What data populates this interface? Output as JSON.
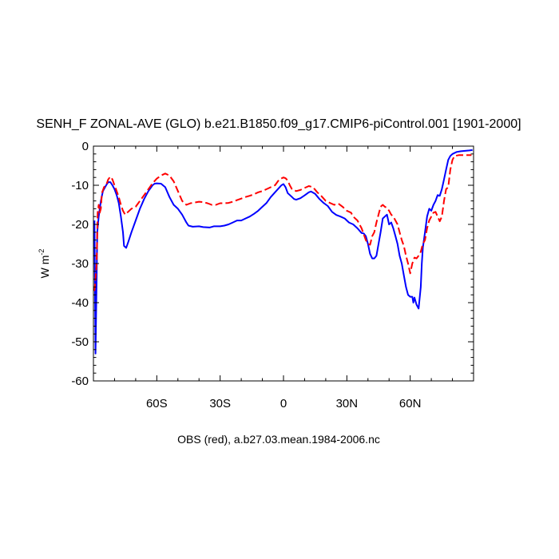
{
  "chart_data": {
    "type": "line",
    "title": "SENH_F ZONAL-AVE (GLO) b.e21.B1850.f09_g17.CMIP6-piControl.001 [1901-2000]",
    "ylabel": "W m",
    "ylabel_sup": "-2",
    "xlabel": "OBS (red), a.b27.03.mean.1984-2006.nc",
    "xlim": [
      -90,
      90
    ],
    "ylim": [
      -60,
      0
    ],
    "x_ticks": [
      {
        "value": -60,
        "label": "60S"
      },
      {
        "value": -30,
        "label": "30S"
      },
      {
        "value": 0,
        "label": "0"
      },
      {
        "value": 30,
        "label": "30N"
      },
      {
        "value": 60,
        "label": "60N"
      }
    ],
    "y_ticks": [
      {
        "value": 0,
        "label": "0"
      },
      {
        "value": -10,
        "label": "-10"
      },
      {
        "value": -20,
        "label": "-20"
      },
      {
        "value": -30,
        "label": "-30"
      },
      {
        "value": -40,
        "label": "-40"
      },
      {
        "value": -50,
        "label": "-50"
      },
      {
        "value": -60,
        "label": "-60"
      }
    ],
    "grid": false,
    "series": [
      {
        "color": "#0000ff",
        "dash": "solid",
        "points": [
          [
            -89.5,
            -19
          ],
          [
            -89,
            -53
          ],
          [
            -88.6,
            -38
          ],
          [
            -88.2,
            -22
          ],
          [
            -87.5,
            -18
          ],
          [
            -86.5,
            -14
          ],
          [
            -85.5,
            -11.5
          ],
          [
            -84,
            -10
          ],
          [
            -83,
            -9.2
          ],
          [
            -82,
            -9.2
          ],
          [
            -81,
            -10
          ],
          [
            -80,
            -11
          ],
          [
            -79,
            -12.5
          ],
          [
            -78,
            -14.5
          ],
          [
            -77,
            -18
          ],
          [
            -76,
            -22
          ],
          [
            -75.5,
            -25.5
          ],
          [
            -74.5,
            -26
          ],
          [
            -73.5,
            -24.5
          ],
          [
            -72,
            -22
          ],
          [
            -70,
            -19
          ],
          [
            -68,
            -16
          ],
          [
            -66,
            -13.5
          ],
          [
            -64,
            -11.5
          ],
          [
            -62,
            -10
          ],
          [
            -61,
            -9.6
          ],
          [
            -60,
            -9.5
          ],
          [
            -58,
            -9.6
          ],
          [
            -56,
            -10.5
          ],
          [
            -54,
            -13
          ],
          [
            -52,
            -15
          ],
          [
            -50,
            -16
          ],
          [
            -48,
            -17.5
          ],
          [
            -46,
            -19.5
          ],
          [
            -45,
            -20.3
          ],
          [
            -43,
            -20.6
          ],
          [
            -40,
            -20.5
          ],
          [
            -38,
            -20.7
          ],
          [
            -35,
            -20.8
          ],
          [
            -33,
            -20.5
          ],
          [
            -30,
            -20.5
          ],
          [
            -28,
            -20.3
          ],
          [
            -26,
            -20
          ],
          [
            -24,
            -19.5
          ],
          [
            -22,
            -19
          ],
          [
            -20,
            -19
          ],
          [
            -18,
            -18.5
          ],
          [
            -16,
            -18
          ],
          [
            -14,
            -17.3
          ],
          [
            -12,
            -16.5
          ],
          [
            -10,
            -15.5
          ],
          [
            -8,
            -14.5
          ],
          [
            -6,
            -13
          ],
          [
            -4,
            -11.8
          ],
          [
            -2,
            -10.6
          ],
          [
            -1,
            -10
          ],
          [
            0,
            -9.7
          ],
          [
            1,
            -10.5
          ],
          [
            2,
            -12
          ],
          [
            4,
            -13
          ],
          [
            5,
            -13.5
          ],
          [
            6,
            -13.7
          ],
          [
            8,
            -13.3
          ],
          [
            10,
            -12.6
          ],
          [
            12,
            -11.8
          ],
          [
            13,
            -11.6
          ],
          [
            15,
            -12.2
          ],
          [
            17,
            -13.5
          ],
          [
            19,
            -14.5
          ],
          [
            21,
            -15.3
          ],
          [
            23,
            -16.8
          ],
          [
            25,
            -17.6
          ],
          [
            27,
            -18
          ],
          [
            29,
            -18.5
          ],
          [
            31,
            -19.5
          ],
          [
            33,
            -20
          ],
          [
            35,
            -21
          ],
          [
            37,
            -22.2
          ],
          [
            38,
            -22.3
          ],
          [
            39,
            -23
          ],
          [
            40,
            -25
          ],
          [
            41,
            -27.5
          ],
          [
            42,
            -28.7
          ],
          [
            43,
            -28.7
          ],
          [
            44,
            -28
          ],
          [
            45,
            -25
          ],
          [
            46,
            -22
          ],
          [
            47,
            -18.5
          ],
          [
            48,
            -18
          ],
          [
            49,
            -17.5
          ],
          [
            50,
            -20
          ],
          [
            51,
            -19.5
          ],
          [
            52,
            -21
          ],
          [
            53,
            -23
          ],
          [
            54,
            -25
          ],
          [
            55,
            -28
          ],
          [
            56,
            -30
          ],
          [
            57,
            -33
          ],
          [
            58,
            -36
          ],
          [
            59,
            -38
          ],
          [
            60,
            -38.5
          ],
          [
            61,
            -38.5
          ],
          [
            61.5,
            -40
          ],
          [
            62,
            -38.7
          ],
          [
            63,
            -40.5
          ],
          [
            64,
            -41.5
          ],
          [
            65,
            -36
          ],
          [
            65.5,
            -30
          ],
          [
            66,
            -26
          ],
          [
            67,
            -22
          ],
          [
            68,
            -18
          ],
          [
            69,
            -16
          ],
          [
            70,
            -16.5
          ],
          [
            71,
            -15
          ],
          [
            72,
            -14
          ],
          [
            73,
            -12.5
          ],
          [
            74,
            -12.7
          ],
          [
            75,
            -11
          ],
          [
            76,
            -8.5
          ],
          [
            77,
            -6
          ],
          [
            78,
            -3.5
          ],
          [
            79,
            -2.5
          ],
          [
            80,
            -2
          ],
          [
            82,
            -1.5
          ],
          [
            84,
            -1.3
          ],
          [
            86,
            -1.2
          ],
          [
            88,
            -1.1
          ],
          [
            89.5,
            -1
          ]
        ]
      },
      {
        "color": "#ff0000",
        "dash": "dashed",
        "points": [
          [
            -89.5,
            -37
          ],
          [
            -89,
            -34
          ],
          [
            -88.5,
            -30
          ],
          [
            -88,
            -17
          ],
          [
            -87.5,
            -15
          ],
          [
            -87,
            -17
          ],
          [
            -86.5,
            -16
          ],
          [
            -86,
            -12
          ],
          [
            -85,
            -10.5
          ],
          [
            -84,
            -10
          ],
          [
            -83,
            -8.5
          ],
          [
            -82,
            -7.8
          ],
          [
            -81,
            -8.5
          ],
          [
            -80,
            -10
          ],
          [
            -79,
            -11.5
          ],
          [
            -78,
            -13
          ],
          [
            -77,
            -15
          ],
          [
            -76,
            -16.5
          ],
          [
            -75,
            -17.5
          ],
          [
            -74,
            -17
          ],
          [
            -72,
            -16
          ],
          [
            -70,
            -15.5
          ],
          [
            -68,
            -14
          ],
          [
            -66,
            -12.5
          ],
          [
            -64,
            -11
          ],
          [
            -62,
            -9.5
          ],
          [
            -60,
            -8.3
          ],
          [
            -58,
            -7.5
          ],
          [
            -56,
            -7
          ],
          [
            -54,
            -7.5
          ],
          [
            -52,
            -9
          ],
          [
            -50,
            -11.5
          ],
          [
            -48,
            -14
          ],
          [
            -46,
            -15
          ],
          [
            -44,
            -14.6
          ],
          [
            -42,
            -14.4
          ],
          [
            -40,
            -14.2
          ],
          [
            -38,
            -14.3
          ],
          [
            -36,
            -14.6
          ],
          [
            -34,
            -15
          ],
          [
            -32,
            -15
          ],
          [
            -30,
            -14.6
          ],
          [
            -28,
            -14.6
          ],
          [
            -26,
            -14.5
          ],
          [
            -24,
            -14.2
          ],
          [
            -22,
            -13.8
          ],
          [
            -20,
            -13.4
          ],
          [
            -18,
            -13
          ],
          [
            -16,
            -12.7
          ],
          [
            -14,
            -12.3
          ],
          [
            -12,
            -11.8
          ],
          [
            -10,
            -11.5
          ],
          [
            -8,
            -11
          ],
          [
            -6,
            -10.5
          ],
          [
            -4,
            -10
          ],
          [
            -2,
            -8.5
          ],
          [
            0,
            -8
          ],
          [
            1,
            -8.2
          ],
          [
            2,
            -8.8
          ],
          [
            3,
            -10
          ],
          [
            4,
            -11
          ],
          [
            6,
            -11.5
          ],
          [
            8,
            -11.2
          ],
          [
            10,
            -10.7
          ],
          [
            12,
            -10.2
          ],
          [
            14,
            -10.5
          ],
          [
            16,
            -11.8
          ],
          [
            18,
            -12.8
          ],
          [
            20,
            -14
          ],
          [
            22,
            -14.5
          ],
          [
            24,
            -15
          ],
          [
            26,
            -14.7
          ],
          [
            28,
            -15.5
          ],
          [
            30,
            -16.5
          ],
          [
            32,
            -17
          ],
          [
            33,
            -18
          ],
          [
            35,
            -19
          ],
          [
            37,
            -21
          ],
          [
            39,
            -24
          ],
          [
            40,
            -25
          ],
          [
            41,
            -25.2
          ],
          [
            42,
            -23
          ],
          [
            43,
            -22
          ],
          [
            44,
            -19.5
          ],
          [
            45,
            -17.5
          ],
          [
            46,
            -15.5
          ],
          [
            47,
            -15
          ],
          [
            48,
            -15.5
          ],
          [
            49,
            -15.8
          ],
          [
            50,
            -16.5
          ],
          [
            51,
            -17.5
          ],
          [
            52,
            -18
          ],
          [
            53,
            -19
          ],
          [
            54,
            -20
          ],
          [
            55,
            -22
          ],
          [
            56,
            -24
          ],
          [
            57,
            -25.5
          ],
          [
            58,
            -28
          ],
          [
            59,
            -30
          ],
          [
            60,
            -32.5
          ],
          [
            61,
            -30
          ],
          [
            62,
            -28.5
          ],
          [
            63,
            -28.7
          ],
          [
            64,
            -28
          ],
          [
            65,
            -27
          ],
          [
            66,
            -25
          ],
          [
            67,
            -24
          ],
          [
            68,
            -21
          ],
          [
            69,
            -19
          ],
          [
            70,
            -18
          ],
          [
            71,
            -17
          ],
          [
            72,
            -16.8
          ],
          [
            73,
            -18
          ],
          [
            74,
            -19.2
          ],
          [
            75,
            -18
          ],
          [
            76,
            -14
          ],
          [
            77,
            -11
          ],
          [
            78,
            -10.5
          ],
          [
            79,
            -6
          ],
          [
            80,
            -3.5
          ],
          [
            81,
            -2.5
          ],
          [
            83,
            -2.3
          ],
          [
            85,
            -2.3
          ],
          [
            87,
            -2.3
          ],
          [
            89,
            -2.3
          ]
        ]
      }
    ]
  }
}
